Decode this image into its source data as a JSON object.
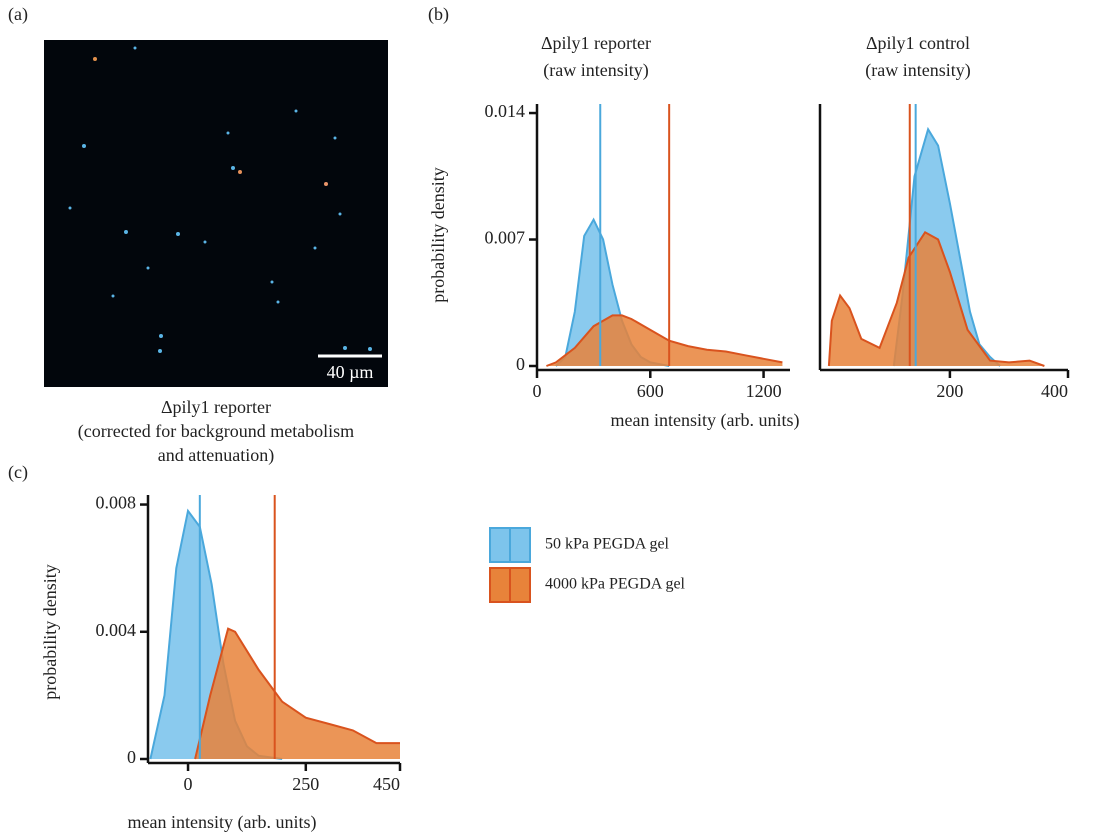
{
  "panel_labels": [
    "(a)",
    "(b)",
    "(c)"
  ],
  "image": {
    "scale_bar": "40 µm",
    "caption": [
      "Δpily1 reporter",
      "(corrected for background metabolism",
      "and attenuation)"
    ]
  },
  "chart_data": [
    {
      "type": "density",
      "title": [
        "Δpily1 reporter",
        "(raw intensity)"
      ],
      "ylabel": "probability density",
      "xlabel": "mean intensity (arb. units)",
      "xlim": [
        0,
        1340
      ],
      "ylim": [
        0,
        0.0145
      ],
      "xticks": [
        0,
        600,
        1200
      ],
      "yticks": [
        0,
        0.007,
        0.014
      ],
      "series": [
        {
          "color": "#4aa8dc",
          "fill": "#7dc4ec",
          "x": [
            100,
            150,
            200,
            250,
            300,
            350,
            400,
            450,
            500,
            550,
            600,
            700
          ],
          "values": [
            0,
            0.0005,
            0.003,
            0.0072,
            0.0081,
            0.007,
            0.0045,
            0.0025,
            0.0012,
            0.0005,
            0.0002,
            0
          ],
          "mean": 335
        },
        {
          "color": "#d9531e",
          "fill": "#e8833a",
          "x": [
            50,
            100,
            200,
            300,
            400,
            450,
            500,
            600,
            700,
            800,
            900,
            1000,
            1100,
            1200,
            1300
          ],
          "values": [
            0,
            0.0002,
            0.001,
            0.0022,
            0.0028,
            0.0028,
            0.0026,
            0.002,
            0.0014,
            0.0011,
            0.0009,
            0.0008,
            0.0006,
            0.0004,
            0.0002
          ],
          "mean": 700
        }
      ]
    },
    {
      "type": "density",
      "title": [
        "Δpily1 control",
        "(raw intensity)"
      ],
      "xlim": [
        -20,
        400
      ],
      "ylim": [
        0,
        0.0145
      ],
      "xticks": [
        200,
        400
      ],
      "series": [
        {
          "color": "#4aa8dc",
          "fill": "#7dc4ec",
          "x": [
            105,
            120,
            140,
            163,
            180,
            200,
            220,
            234,
            250,
            268,
            285
          ],
          "values": [
            0,
            0.004,
            0.0105,
            0.0131,
            0.0122,
            0.009,
            0.0055,
            0.003,
            0.0012,
            0.0005,
            0
          ],
          "mean": 142
        },
        {
          "color": "#d9531e",
          "fill": "#e8833a",
          "x": [
            -5,
            0,
            14,
            30,
            50,
            81,
            110,
            130,
            158,
            180,
            200,
            230,
            268,
            300,
            335,
            360
          ],
          "values": [
            0,
            0.0025,
            0.0039,
            0.0032,
            0.0015,
            0.001,
            0.0035,
            0.006,
            0.0074,
            0.007,
            0.0052,
            0.002,
            0.0003,
            0.0002,
            0.0003,
            0
          ],
          "mean": 132
        }
      ]
    },
    {
      "type": "density",
      "ylabel": "probability density",
      "xlabel": "mean intensity (arb. units)",
      "xlim": [
        -85,
        450
      ],
      "ylim": [
        0,
        0.0083
      ],
      "xticks": [
        0,
        250,
        450
      ],
      "yticks": [
        0,
        0.004,
        0.008
      ],
      "series": [
        {
          "name": "50 kPa PEGDA gel",
          "color": "#4aa8dc",
          "fill": "#7dc4ec",
          "x": [
            -80,
            -50,
            -25,
            0,
            25,
            50,
            75,
            100,
            125,
            150,
            200
          ],
          "values": [
            0,
            0.002,
            0.006,
            0.0078,
            0.0073,
            0.0055,
            0.003,
            0.0012,
            0.0004,
            0.0001,
            0
          ],
          "mean": 25
        },
        {
          "name": "4000 kPa PEGDA gel",
          "color": "#d9531e",
          "fill": "#e8833a",
          "x": [
            15,
            47,
            85,
            100,
            150,
            200,
            250,
            300,
            350,
            400,
            450
          ],
          "values": [
            0,
            0.002,
            0.0041,
            0.004,
            0.0028,
            0.0018,
            0.0013,
            0.0011,
            0.0009,
            0.0005,
            0.0005
          ],
          "mean": 184
        }
      ]
    }
  ]
}
